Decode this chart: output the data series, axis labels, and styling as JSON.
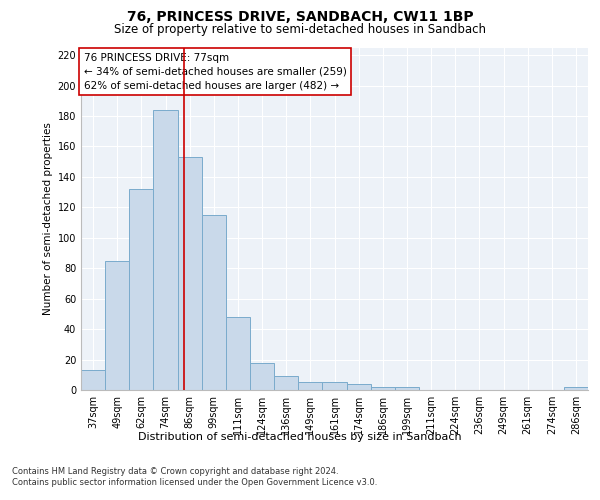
{
  "title1": "76, PRINCESS DRIVE, SANDBACH, CW11 1BP",
  "title2": "Size of property relative to semi-detached houses in Sandbach",
  "xlabel": "Distribution of semi-detached houses by size in Sandbach",
  "ylabel": "Number of semi-detached properties",
  "categories": [
    "37sqm",
    "49sqm",
    "62sqm",
    "74sqm",
    "86sqm",
    "99sqm",
    "111sqm",
    "124sqm",
    "136sqm",
    "149sqm",
    "161sqm",
    "174sqm",
    "186sqm",
    "199sqm",
    "211sqm",
    "224sqm",
    "236sqm",
    "249sqm",
    "261sqm",
    "274sqm",
    "286sqm"
  ],
  "values": [
    13,
    85,
    132,
    184,
    153,
    115,
    48,
    18,
    9,
    5,
    5,
    4,
    2,
    2,
    0,
    0,
    0,
    0,
    0,
    0,
    2
  ],
  "bar_color": "#c9d9ea",
  "bar_edge_color": "#7aabcc",
  "vline_x": 3.77,
  "vline_color": "#cc0000",
  "annotation_text": "76 PRINCESS DRIVE: 77sqm\n← 34% of semi-detached houses are smaller (259)\n62% of semi-detached houses are larger (482) →",
  "annotation_box_color": "#ffffff",
  "annotation_box_edge": "#cc0000",
  "ylim": [
    0,
    225
  ],
  "yticks": [
    0,
    20,
    40,
    60,
    80,
    100,
    120,
    140,
    160,
    180,
    200,
    220
  ],
  "footnote": "Contains HM Land Registry data © Crown copyright and database right 2024.\nContains public sector information licensed under the Open Government Licence v3.0.",
  "background_color": "#edf2f8",
  "grid_color": "#ffffff",
  "title1_fontsize": 10,
  "title2_fontsize": 8.5,
  "xlabel_fontsize": 8,
  "ylabel_fontsize": 7.5,
  "tick_fontsize": 7,
  "annotation_fontsize": 7.5,
  "footnote_fontsize": 6
}
